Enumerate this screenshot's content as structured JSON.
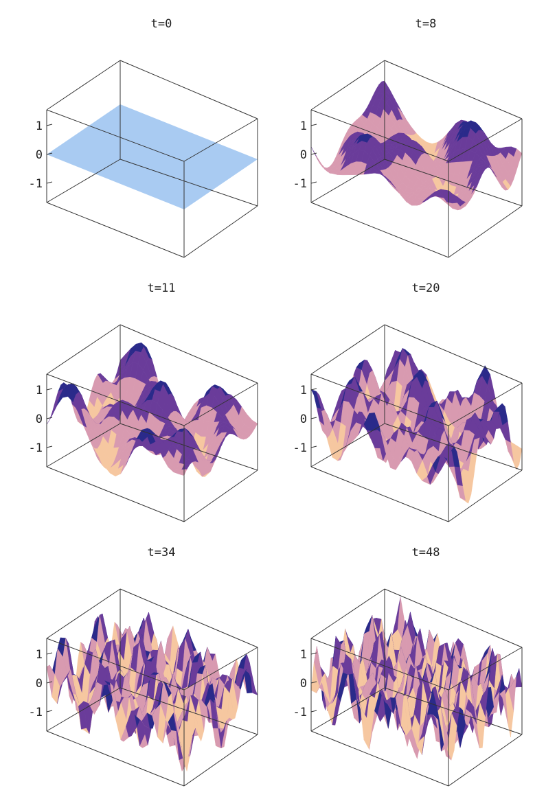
{
  "chart_data": [
    {
      "type": "surface3d",
      "title": "t=0",
      "zlim": [
        -1.6,
        1.6
      ],
      "zticks": [
        {
          "value": 1,
          "label": "1"
        },
        {
          "value": 0,
          "label": "0"
        },
        {
          "value": -1,
          "label": "-1"
        }
      ],
      "surface": {
        "kind": "flat",
        "z": 0,
        "color": "#a9cbf2"
      },
      "grid": false
    },
    {
      "type": "surface3d",
      "title": "t=8",
      "zlim": [
        -1.6,
        1.6
      ],
      "zticks": [
        {
          "value": 1,
          "label": "1"
        },
        {
          "value": 0,
          "label": "0"
        },
        {
          "value": -1,
          "label": "-1"
        }
      ],
      "surface": {
        "kind": "wave",
        "amplitude": 1.3,
        "roughness": 1,
        "colormap": [
          "#f6c7a0",
          "#d89ab0",
          "#6a3c9a",
          "#2a2a8a"
        ]
      },
      "grid": false
    },
    {
      "type": "surface3d",
      "title": "t=11",
      "zlim": [
        -1.6,
        1.6
      ],
      "zticks": [
        {
          "value": 1,
          "label": "1"
        },
        {
          "value": 0,
          "label": "0"
        },
        {
          "value": -1,
          "label": "-1"
        }
      ],
      "surface": {
        "kind": "wave",
        "amplitude": 1.4,
        "roughness": 1.4,
        "colormap": [
          "#f6c7a0",
          "#d89ab0",
          "#6a3c9a",
          "#2a2a8a"
        ]
      },
      "grid": false
    },
    {
      "type": "surface3d",
      "title": "t=20",
      "zlim": [
        -1.6,
        1.6
      ],
      "zticks": [
        {
          "value": 1,
          "label": "1"
        },
        {
          "value": 0,
          "label": "0"
        },
        {
          "value": -1,
          "label": "-1"
        }
      ],
      "surface": {
        "kind": "wave",
        "amplitude": 1.4,
        "roughness": 2.4,
        "colormap": [
          "#f6c7a0",
          "#d89ab0",
          "#6a3c9a",
          "#2a2a8a"
        ]
      },
      "grid": false
    },
    {
      "type": "surface3d",
      "title": "t=34",
      "zlim": [
        -1.6,
        1.6
      ],
      "zticks": [
        {
          "value": 1,
          "label": "1"
        },
        {
          "value": 0,
          "label": "0"
        },
        {
          "value": -1,
          "label": "-1"
        }
      ],
      "surface": {
        "kind": "wave",
        "amplitude": 1.5,
        "roughness": 4,
        "colormap": [
          "#f6c7a0",
          "#d89ab0",
          "#6a3c9a",
          "#2a2a8a"
        ]
      },
      "grid": false
    },
    {
      "type": "surface3d",
      "title": "t=48",
      "zlim": [
        -1.6,
        1.6
      ],
      "zticks": [
        {
          "value": 1,
          "label": "1"
        },
        {
          "value": 0,
          "label": "0"
        },
        {
          "value": -1,
          "label": "-1"
        }
      ],
      "surface": {
        "kind": "wave",
        "amplitude": 1.5,
        "roughness": 5,
        "colormap": [
          "#f6c7a0",
          "#d89ab0",
          "#6a3c9a",
          "#2a2a8a"
        ]
      },
      "grid": false
    }
  ]
}
